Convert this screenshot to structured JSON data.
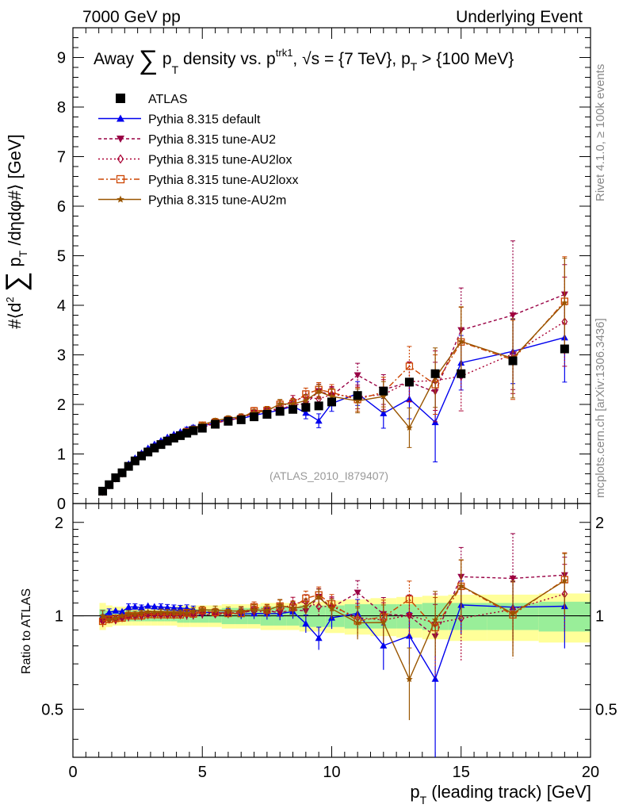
{
  "header": {
    "left": "7000 GeV pp",
    "right": "Underlying Event"
  },
  "chart_data": {
    "type": "scatter",
    "title": "Away ∑ p_T density vs. p_T^trk1, √s = {7 TeV}, p_T > {100 MeV}",
    "title_parts": {
      "a": "Away",
      "sum": "∑",
      "p": "p",
      "T": "T",
      "b": "density vs. p",
      "sup": "trk1",
      "c": ", √s = {7 TeV}, p",
      "d": " > {100 MeV}"
    },
    "ylabel_parts": {
      "a": "#⟨d",
      "two": "2",
      "sum": "∑",
      "p": "p",
      "T": "T",
      "b": " /dηdφ#⟩ [GeV]"
    },
    "xlabel_parts": {
      "p": "p",
      "T": "T",
      "b": " (leading track) [GeV]"
    },
    "ratio_ylabel": "Ratio to ATLAS",
    "watermark": "(ATLAS_2010_I879407)",
    "side_text_top": "Rivet 4.1.0, ≥ 100k events",
    "side_text_bottom": "mcplots.cern.ch [arXiv:1306.3436]",
    "xlim": [
      0,
      20
    ],
    "ylim": [
      0,
      9.6
    ],
    "ratio_ylim": [
      0.35,
      2.3
    ],
    "x_ticks": [
      "0",
      "5",
      "10",
      "15",
      "20"
    ],
    "y_ticks": [
      "0",
      "1",
      "2",
      "3",
      "4",
      "5",
      "6",
      "7",
      "8",
      "9"
    ],
    "ratio_ticks": [
      "0.5",
      "1",
      "2"
    ],
    "ratio_tick_labels": [
      "0.5",
      "1",
      "2"
    ],
    "x": [
      1.15,
      1.4,
      1.65,
      1.9,
      2.15,
      2.4,
      2.65,
      2.9,
      3.15,
      3.4,
      3.65,
      3.9,
      4.15,
      4.4,
      4.65,
      5.0,
      5.5,
      6.0,
      6.5,
      7.0,
      7.5,
      8.0,
      8.5,
      9.0,
      9.5,
      10.0,
      11.0,
      12.0,
      13.0,
      14.0,
      15.0,
      17.0,
      19.0
    ],
    "series": [
      {
        "name": "ATLAS",
        "color": "#000000",
        "marker": "square",
        "dash": "",
        "values": [
          0.25,
          0.38,
          0.52,
          0.62,
          0.75,
          0.86,
          0.96,
          1.04,
          1.12,
          1.19,
          1.26,
          1.32,
          1.37,
          1.42,
          1.47,
          1.52,
          1.6,
          1.66,
          1.69,
          1.75,
          1.8,
          1.86,
          1.9,
          1.94,
          1.97,
          2.05,
          2.18,
          2.27,
          2.45,
          2.62,
          2.62,
          2.88,
          3.12
        ],
        "band_stat": [
          0.05,
          0.04,
          0.04,
          0.04,
          0.04,
          0.04,
          0.04,
          0.04,
          0.04,
          0.04,
          0.04,
          0.04,
          0.05,
          0.05,
          0.05,
          0.05,
          0.05,
          0.06,
          0.06,
          0.06,
          0.07,
          0.07,
          0.07,
          0.08,
          0.08,
          0.08,
          0.09,
          0.09,
          0.09,
          0.1,
          0.1,
          0.1,
          0.11
        ],
        "band_tot": [
          0.1,
          0.08,
          0.07,
          0.07,
          0.07,
          0.07,
          0.07,
          0.07,
          0.07,
          0.07,
          0.07,
          0.07,
          0.08,
          0.08,
          0.08,
          0.08,
          0.08,
          0.09,
          0.09,
          0.09,
          0.1,
          0.1,
          0.1,
          0.11,
          0.11,
          0.12,
          0.13,
          0.14,
          0.15,
          0.16,
          0.17,
          0.17,
          0.18
        ]
      },
      {
        "name": "Pythia 8.315 default",
        "color": "#0000ee",
        "marker": "triangle-up",
        "dash": "",
        "values": [
          0.25,
          0.39,
          0.54,
          0.64,
          0.8,
          0.92,
          1.02,
          1.12,
          1.2,
          1.27,
          1.34,
          1.4,
          1.45,
          1.5,
          1.54,
          1.56,
          1.64,
          1.7,
          1.71,
          1.78,
          1.83,
          1.89,
          1.96,
          1.83,
          1.67,
          2.02,
          2.22,
          1.82,
          2.11,
          1.64,
          2.84,
          3.07,
          3.35
        ],
        "errors": [
          0.01,
          0.01,
          0.01,
          0.01,
          0.02,
          0.02,
          0.02,
          0.02,
          0.02,
          0.03,
          0.03,
          0.03,
          0.03,
          0.04,
          0.04,
          0.04,
          0.05,
          0.05,
          0.06,
          0.07,
          0.08,
          0.09,
          0.1,
          0.12,
          0.14,
          0.16,
          0.24,
          0.3,
          0.4,
          0.8,
          0.55,
          0.65,
          0.9
        ]
      },
      {
        "name": "Pythia 8.315 tune-AU2",
        "color": "#990044",
        "marker": "triangle-down",
        "dash": "4,3",
        "values": [
          0.24,
          0.37,
          0.5,
          0.61,
          0.74,
          0.85,
          0.95,
          1.04,
          1.12,
          1.19,
          1.26,
          1.32,
          1.37,
          1.42,
          1.47,
          1.53,
          1.62,
          1.68,
          1.72,
          1.83,
          1.87,
          1.9,
          1.99,
          2.01,
          2.27,
          2.18,
          2.59,
          2.3,
          2.45,
          2.25,
          3.5,
          3.8,
          4.22
        ],
        "errors": [
          0.01,
          0.01,
          0.01,
          0.01,
          0.02,
          0.02,
          0.02,
          0.02,
          0.02,
          0.03,
          0.03,
          0.03,
          0.03,
          0.04,
          0.04,
          0.04,
          0.05,
          0.05,
          0.06,
          0.07,
          0.08,
          0.09,
          0.1,
          0.12,
          0.14,
          0.16,
          0.24,
          0.3,
          0.4,
          0.6,
          0.85,
          1.5,
          0.6
        ]
      },
      {
        "name": "Pythia 8.315 tune-AU2lox",
        "color": "#aa0033",
        "marker": "diamond-open",
        "dash": "2,3",
        "values": [
          0.24,
          0.37,
          0.51,
          0.61,
          0.75,
          0.86,
          0.97,
          1.05,
          1.13,
          1.2,
          1.27,
          1.33,
          1.38,
          1.44,
          1.49,
          1.56,
          1.62,
          1.69,
          1.74,
          1.81,
          1.85,
          1.94,
          2.08,
          2.15,
          2.11,
          2.2,
          2.15,
          2.2,
          2.46,
          2.48,
          2.57,
          3.02,
          3.67
        ],
        "errors": [
          0.01,
          0.01,
          0.01,
          0.01,
          0.02,
          0.02,
          0.02,
          0.02,
          0.02,
          0.03,
          0.03,
          0.03,
          0.03,
          0.04,
          0.04,
          0.04,
          0.05,
          0.05,
          0.06,
          0.07,
          0.08,
          0.09,
          0.1,
          0.12,
          0.14,
          0.16,
          0.24,
          0.3,
          0.4,
          0.6,
          0.7,
          0.8,
          0.9
        ]
      },
      {
        "name": "Pythia 8.315 tune-AU2loxx",
        "color": "#cc4400",
        "marker": "square-open",
        "dash": "7,3,2,3",
        "values": [
          0.24,
          0.37,
          0.51,
          0.61,
          0.75,
          0.86,
          0.96,
          1.05,
          1.13,
          1.2,
          1.27,
          1.33,
          1.38,
          1.45,
          1.49,
          1.58,
          1.64,
          1.69,
          1.72,
          1.87,
          1.88,
          2.0,
          2.02,
          2.21,
          2.3,
          2.24,
          2.1,
          2.25,
          2.77,
          2.4,
          3.26,
          2.9,
          4.08
        ],
        "errors": [
          0.01,
          0.01,
          0.01,
          0.01,
          0.02,
          0.02,
          0.02,
          0.02,
          0.02,
          0.03,
          0.03,
          0.03,
          0.03,
          0.04,
          0.04,
          0.04,
          0.05,
          0.05,
          0.06,
          0.07,
          0.08,
          0.09,
          0.1,
          0.12,
          0.14,
          0.16,
          0.24,
          0.3,
          0.4,
          0.6,
          0.7,
          0.8,
          0.9
        ]
      },
      {
        "name": "Pythia 8.315 tune-AU2m",
        "color": "#995500",
        "marker": "star",
        "dash": "",
        "values": [
          0.25,
          0.37,
          0.51,
          0.62,
          0.76,
          0.87,
          0.98,
          1.07,
          1.15,
          1.22,
          1.29,
          1.35,
          1.4,
          1.45,
          1.52,
          1.59,
          1.67,
          1.72,
          1.75,
          1.83,
          1.87,
          2.01,
          2.01,
          2.08,
          2.26,
          2.16,
          2.07,
          2.16,
          1.53,
          2.54,
          3.27,
          2.93,
          4.05
        ],
        "errors": [
          0.01,
          0.01,
          0.01,
          0.01,
          0.02,
          0.02,
          0.02,
          0.02,
          0.02,
          0.03,
          0.03,
          0.03,
          0.03,
          0.04,
          0.04,
          0.04,
          0.05,
          0.05,
          0.06,
          0.07,
          0.08,
          0.09,
          0.1,
          0.12,
          0.14,
          0.16,
          0.24,
          0.3,
          0.4,
          0.6,
          0.7,
          0.8,
          0.9
        ]
      }
    ]
  }
}
